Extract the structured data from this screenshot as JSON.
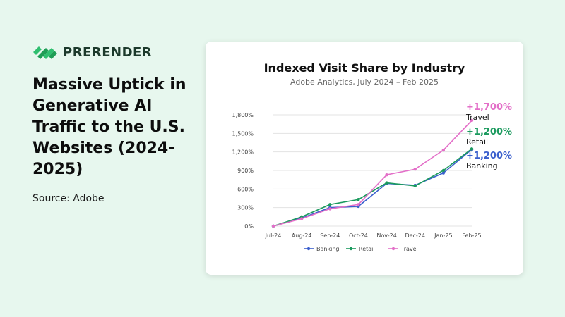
{
  "brand": {
    "name": "PRERENDER",
    "logo_icon": "prerender-logo-icon",
    "color": "#1f9d55"
  },
  "headline": "Massive Uptick in Generative AI Traffic to the U.S. Websites (2024-2025)",
  "source": "Source: Adobe",
  "chart_data": {
    "type": "line",
    "title": "Indexed Visit Share by Industry",
    "subtitle": "Adobe Analytics, July 2024 – Feb 2025",
    "xlabel": "",
    "ylabel": "",
    "x": [
      "Jul-24",
      "Aug-24",
      "Sep-24",
      "Oct-24",
      "Nov-24",
      "Dec-24",
      "Jan-25",
      "Feb-25"
    ],
    "ylim": [
      0,
      1800
    ],
    "yticks": [
      0,
      300,
      600,
      900,
      1200,
      1500,
      1800
    ],
    "ytick_labels": [
      "0%",
      "300%",
      "600%",
      "900%",
      "1,200%",
      "1,500%",
      "1,800%"
    ],
    "grid": true,
    "legend_position": "bottom",
    "series": [
      {
        "name": "Banking",
        "color": "#3a5fcd",
        "values": [
          0,
          130,
          300,
          320,
          690,
          660,
          860,
          1240
        ]
      },
      {
        "name": "Retail",
        "color": "#1b9a5e",
        "values": [
          0,
          150,
          350,
          430,
          700,
          650,
          900,
          1250
        ]
      },
      {
        "name": "Travel",
        "color": "#e36fc8",
        "values": [
          0,
          120,
          280,
          350,
          830,
          920,
          1230,
          1710
        ]
      }
    ],
    "callouts": [
      {
        "value": "+1,700%",
        "name": "Travel",
        "color": "#e36fc8"
      },
      {
        "value": "+1,200%",
        "name": "Retail",
        "color": "#1b9a5e"
      },
      {
        "value": "+1,200%",
        "name": "Banking",
        "color": "#3a5fcd"
      }
    ]
  }
}
